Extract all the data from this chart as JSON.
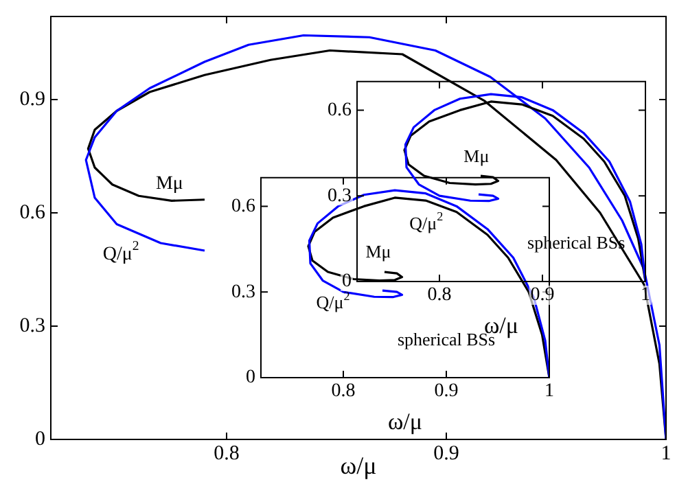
{
  "chart_data": [
    {
      "type": "line",
      "xlabel": "ω/μ",
      "xlim": [
        0.72,
        1.0
      ],
      "ylim": [
        0,
        1.12
      ],
      "xticks": [
        0.8,
        0.9,
        1
      ],
      "yticks": [
        0,
        0.3,
        0.6,
        0.9
      ],
      "series": [
        {
          "color": "#0000ff",
          "x": [
            0.79,
            0.77,
            0.75,
            0.74,
            0.736,
            0.74,
            0.75,
            0.765,
            0.79,
            0.81,
            0.835,
            0.865,
            0.895,
            0.92,
            0.945,
            0.965,
            0.98,
            0.99,
            0.997,
            1.0
          ],
          "values": [
            0.5,
            0.52,
            0.57,
            0.64,
            0.74,
            0.8,
            0.87,
            0.93,
            1.0,
            1.045,
            1.07,
            1.065,
            1.03,
            0.96,
            0.85,
            0.72,
            0.58,
            0.45,
            0.25,
            0
          ]
        },
        {
          "color": "#000000",
          "x": [
            0.79,
            0.775,
            0.76,
            0.748,
            0.74,
            0.737,
            0.74,
            0.75,
            0.765,
            0.79,
            0.82,
            0.847,
            0.88,
            0.9175,
            0.95,
            0.97,
            0.99,
            0.997,
            1.0
          ],
          "values": [
            0.635,
            0.632,
            0.645,
            0.675,
            0.72,
            0.77,
            0.82,
            0.87,
            0.92,
            0.965,
            1.005,
            1.03,
            1.02,
            0.896,
            0.74,
            0.6,
            0.41,
            0.2,
            0
          ]
        }
      ],
      "annotations": [
        "Mμ",
        "Q/μ$^{2}$"
      ]
    },
    {
      "type": "line",
      "xlabel": "ω/μ",
      "xlim": [
        0.72,
        1.0
      ],
      "ylim": [
        0,
        0.7
      ],
      "xticks": [
        0.8,
        0.9,
        1
      ],
      "yticks": [
        0,
        0.3,
        0.6
      ],
      "series": [
        {
          "color": "#0000ff",
          "x": [
            0.838,
            0.852,
            0.857,
            0.848,
            0.83,
            0.8,
            0.78,
            0.768,
            0.767,
            0.775,
            0.795,
            0.82,
            0.85,
            0.88,
            0.91,
            0.94,
            0.965,
            0.985,
            0.996,
            1.0
          ],
          "values": [
            0.305,
            0.3,
            0.29,
            0.282,
            0.283,
            0.3,
            0.34,
            0.4,
            0.48,
            0.54,
            0.6,
            0.64,
            0.656,
            0.645,
            0.6,
            0.52,
            0.42,
            0.28,
            0.13,
            0
          ]
        },
        {
          "color": "#000000",
          "x": [
            0.84,
            0.852,
            0.857,
            0.85,
            0.835,
            0.81,
            0.785,
            0.77,
            0.766,
            0.772,
            0.79,
            0.82,
            0.85,
            0.88,
            0.91,
            0.94,
            0.96,
            0.98,
            0.993,
            1.0
          ],
          "values": [
            0.37,
            0.365,
            0.352,
            0.342,
            0.34,
            0.345,
            0.37,
            0.41,
            0.46,
            0.51,
            0.56,
            0.6,
            0.63,
            0.62,
            0.58,
            0.5,
            0.42,
            0.3,
            0.15,
            0
          ]
        }
      ],
      "annotations": [
        "Mμ",
        "Q/μ$^{2}$",
        "spherical BSs"
      ]
    },
    {
      "type": "line",
      "xlabel": "ω/μ",
      "xlim": [
        0.72,
        1.0
      ],
      "ylim": [
        0,
        0.7
      ],
      "xticks": [
        0.8,
        0.9,
        1
      ],
      "yticks": [
        0,
        0.3,
        0.6
      ],
      "series": [
        {
          "color": "#0000ff",
          "x": [
            0.838,
            0.852,
            0.857,
            0.848,
            0.83,
            0.8,
            0.78,
            0.768,
            0.767,
            0.775,
            0.795,
            0.82,
            0.85,
            0.88,
            0.91,
            0.94,
            0.965,
            0.985,
            0.996,
            1.0
          ],
          "values": [
            0.305,
            0.3,
            0.29,
            0.282,
            0.283,
            0.3,
            0.34,
            0.4,
            0.48,
            0.54,
            0.6,
            0.64,
            0.656,
            0.645,
            0.6,
            0.52,
            0.42,
            0.28,
            0.13,
            0
          ]
        },
        {
          "color": "#000000",
          "x": [
            0.84,
            0.852,
            0.857,
            0.85,
            0.835,
            0.81,
            0.785,
            0.77,
            0.766,
            0.772,
            0.79,
            0.82,
            0.85,
            0.88,
            0.91,
            0.94,
            0.96,
            0.98,
            0.993,
            1.0
          ],
          "values": [
            0.37,
            0.365,
            0.352,
            0.342,
            0.34,
            0.345,
            0.37,
            0.41,
            0.46,
            0.51,
            0.56,
            0.6,
            0.63,
            0.62,
            0.58,
            0.5,
            0.42,
            0.3,
            0.15,
            0
          ]
        }
      ],
      "annotations": [
        "Mμ",
        "Q/μ$^{2}$",
        "spherical BSs"
      ]
    }
  ]
}
